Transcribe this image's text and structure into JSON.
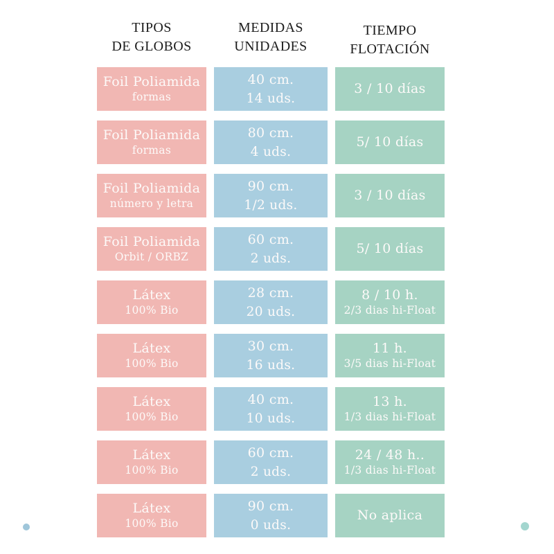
{
  "colors": {
    "cell_pink": "#f1b7b3",
    "cell_blue": "#a9cee0",
    "cell_green": "#a6d3c3",
    "cell_text": "#fdfaf9",
    "header_text": "#1c1c1c",
    "dot_left_blue": "#9fc6da",
    "dot_right_teal": "#a3d6cf"
  },
  "chart_data": {
    "type": "table",
    "title": "",
    "columns": [
      {
        "line1": "TIPOS",
        "line2": "DE GLOBOS"
      },
      {
        "line1": "MEDIDAS",
        "line2": "UNIDADES"
      },
      {
        "line1": "TIEMPO",
        "line2": "FLOTACIÓN"
      }
    ],
    "rows": [
      {
        "tipo": [
          "Foil Poliamida",
          "formas"
        ],
        "medida": [
          "40 cm.",
          "14 uds."
        ],
        "tiempo": [
          "3 / 10 días",
          ""
        ]
      },
      {
        "tipo": [
          "Foil Poliamida",
          "formas"
        ],
        "medida": [
          "80 cm.",
          "4 uds."
        ],
        "tiempo": [
          "5/ 10 días",
          ""
        ]
      },
      {
        "tipo": [
          "Foil Poliamida",
          "número y letra"
        ],
        "medida": [
          "90 cm.",
          "1/2 uds."
        ],
        "tiempo": [
          "3 / 10 días",
          ""
        ]
      },
      {
        "tipo": [
          "Foil Poliamida",
          "Orbit / ORBZ"
        ],
        "medida": [
          "60 cm.",
          "2 uds."
        ],
        "tiempo": [
          "5/ 10 días",
          ""
        ]
      },
      {
        "tipo": [
          "Látex",
          "100% Bio"
        ],
        "medida": [
          "28 cm.",
          "20 uds."
        ],
        "tiempo": [
          "8 / 10 h.",
          "2/3 dias hi-Float"
        ]
      },
      {
        "tipo": [
          "Látex",
          "100% Bio"
        ],
        "medida": [
          "30 cm.",
          "16 uds."
        ],
        "tiempo": [
          "11 h.",
          "3/5 dias hi-Float"
        ]
      },
      {
        "tipo": [
          "Látex",
          "100% Bio"
        ],
        "medida": [
          "40 cm.",
          "10 uds."
        ],
        "tiempo": [
          "13 h.",
          "1/3 dias hi-Float"
        ]
      },
      {
        "tipo": [
          "Látex",
          "100% Bio"
        ],
        "medida": [
          "60 cm.",
          "2 uds."
        ],
        "tiempo": [
          "24 / 48 h..",
          "1/3 dias hi-Float"
        ]
      },
      {
        "tipo": [
          "Látex",
          "100% Bio"
        ],
        "medida": [
          "90 cm.",
          "0 uds."
        ],
        "tiempo": [
          "No aplica",
          ""
        ]
      }
    ]
  }
}
